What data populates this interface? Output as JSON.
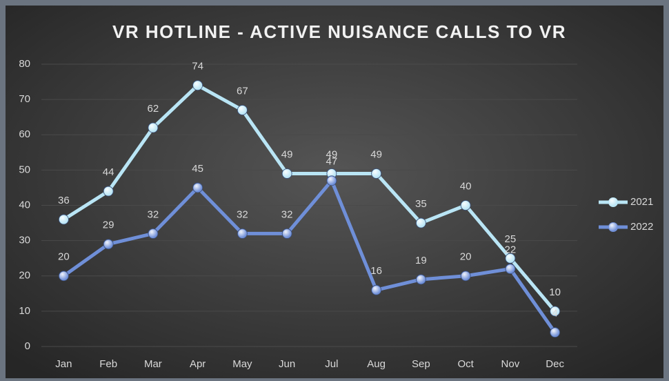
{
  "chart_data": {
    "type": "line",
    "title": "VR HOTLINE - ACTIVE NUISANCE CALLS TO VR",
    "categories": [
      "Jan",
      "Feb",
      "Mar",
      "Apr",
      "May",
      "Jun",
      "Jul",
      "Aug",
      "Sep",
      "Oct",
      "Nov",
      "Dec"
    ],
    "series": [
      {
        "name": "2021",
        "color": "#b9e5f5",
        "values": [
          36,
          44,
          62,
          74,
          67,
          49,
          49,
          49,
          35,
          40,
          25,
          10
        ]
      },
      {
        "name": "2022",
        "color": "#6f8fd8",
        "values": [
          20,
          29,
          32,
          45,
          32,
          32,
          47,
          16,
          19,
          20,
          22,
          4
        ]
      }
    ],
    "ylim": [
      0,
      80
    ],
    "yticks": [
      0,
      10,
      20,
      30,
      40,
      50,
      60,
      70,
      80
    ],
    "grid": true,
    "legend": "right"
  }
}
